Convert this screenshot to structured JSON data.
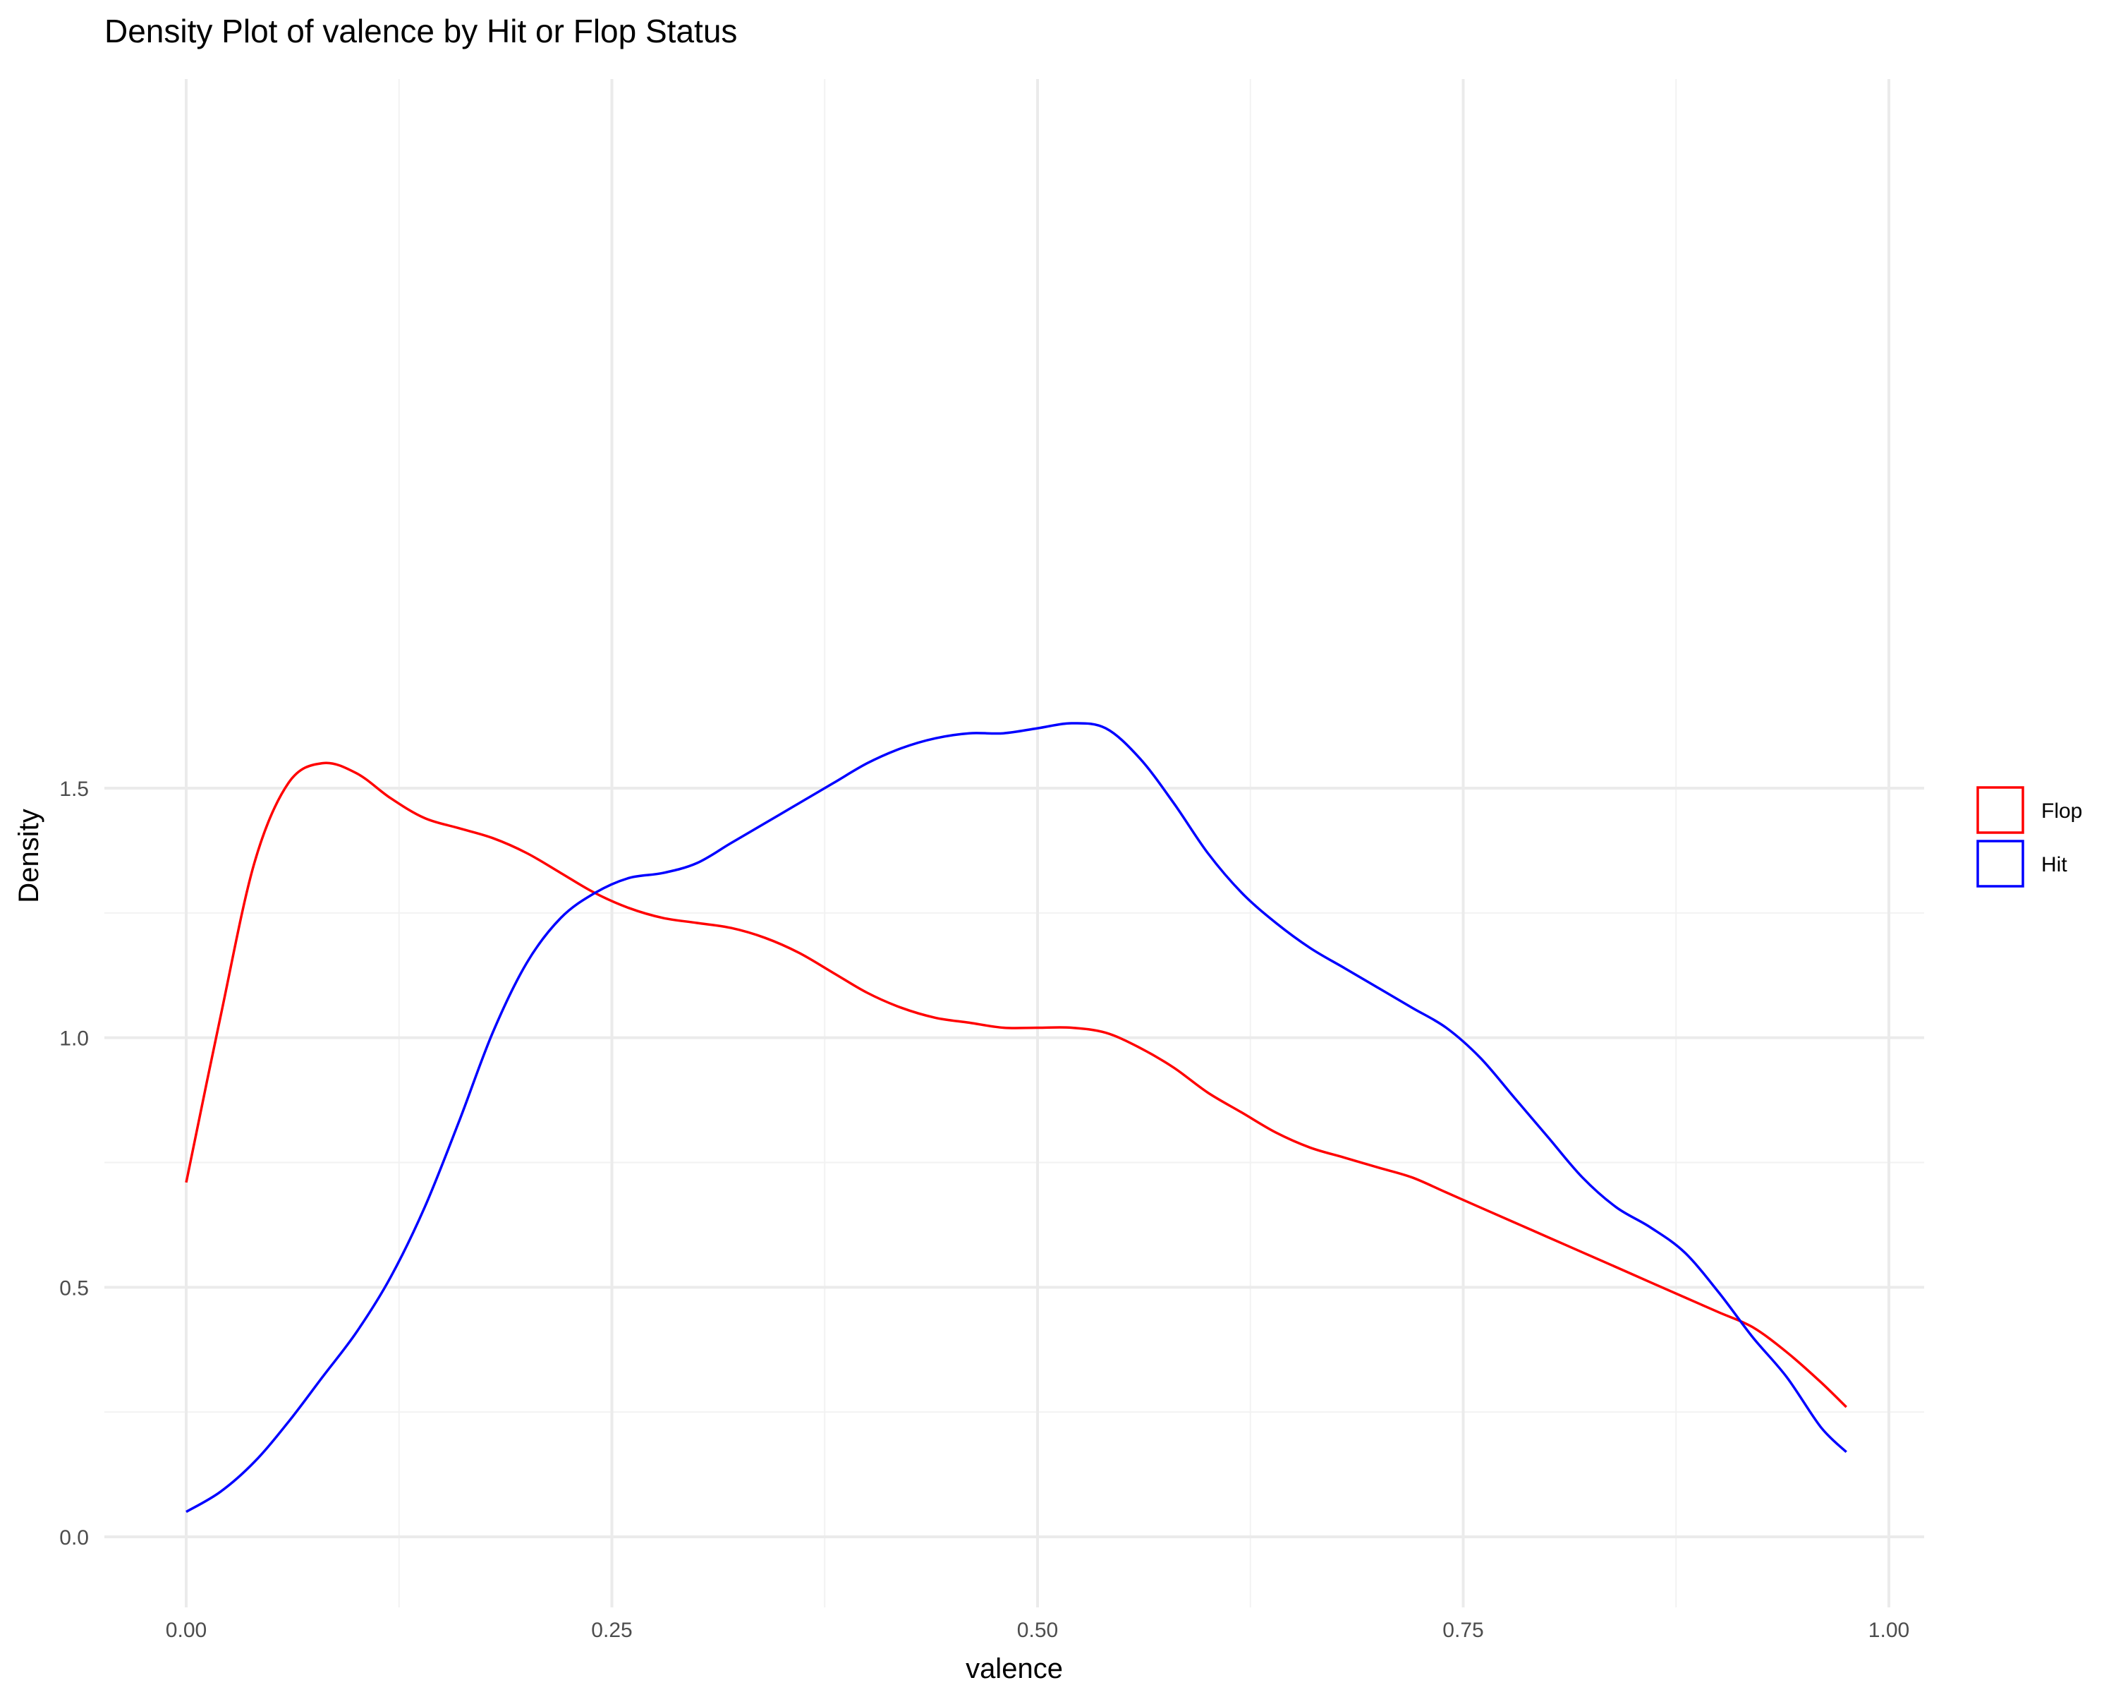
{
  "chart_data": {
    "type": "line",
    "title": "Density Plot of valence by Hit or Flop Status",
    "xlabel": "valence",
    "ylabel": "Density",
    "xlim": [
      0,
      1
    ],
    "ylim": [
      0,
      1.65
    ],
    "x_ticks": [
      0,
      0.25,
      0.5,
      0.75,
      1.0
    ],
    "x_tick_labels": [
      "0.00",
      "0.25",
      "0.50",
      "0.75",
      "1.00"
    ],
    "y_ticks": [
      0,
      0.5,
      1.0,
      1.5
    ],
    "y_tick_labels": [
      "0.0",
      "0.5",
      "1.0",
      "1.5"
    ],
    "grid": true,
    "legend_position": "right",
    "series": [
      {
        "name": "Flop",
        "color": "#ff0000",
        "x": [
          0.0,
          0.02,
          0.04,
          0.06,
          0.08,
          0.1,
          0.12,
          0.14,
          0.16,
          0.18,
          0.2,
          0.22,
          0.24,
          0.26,
          0.28,
          0.3,
          0.32,
          0.34,
          0.36,
          0.38,
          0.4,
          0.42,
          0.44,
          0.46,
          0.48,
          0.5,
          0.52,
          0.54,
          0.56,
          0.58,
          0.6,
          0.62,
          0.64,
          0.66,
          0.68,
          0.7,
          0.72,
          0.74,
          0.76,
          0.78,
          0.8,
          0.82,
          0.84,
          0.86,
          0.88,
          0.9,
          0.92,
          0.94,
          0.96,
          0.975
        ],
        "y": [
          0.71,
          1.04,
          1.35,
          1.51,
          1.55,
          1.53,
          1.48,
          1.44,
          1.42,
          1.4,
          1.37,
          1.33,
          1.29,
          1.26,
          1.24,
          1.23,
          1.22,
          1.2,
          1.17,
          1.13,
          1.09,
          1.06,
          1.04,
          1.03,
          1.02,
          1.02,
          1.02,
          1.01,
          0.98,
          0.94,
          0.89,
          0.85,
          0.81,
          0.78,
          0.76,
          0.74,
          0.72,
          0.69,
          0.66,
          0.63,
          0.6,
          0.57,
          0.54,
          0.51,
          0.48,
          0.45,
          0.42,
          0.37,
          0.31,
          0.26
        ]
      },
      {
        "name": "Hit",
        "color": "#0000ff",
        "x": [
          0.0,
          0.02,
          0.04,
          0.06,
          0.08,
          0.1,
          0.12,
          0.14,
          0.16,
          0.18,
          0.2,
          0.22,
          0.24,
          0.26,
          0.28,
          0.3,
          0.32,
          0.34,
          0.36,
          0.38,
          0.4,
          0.42,
          0.44,
          0.46,
          0.48,
          0.5,
          0.52,
          0.54,
          0.56,
          0.58,
          0.6,
          0.62,
          0.64,
          0.66,
          0.68,
          0.7,
          0.72,
          0.74,
          0.76,
          0.78,
          0.8,
          0.82,
          0.84,
          0.86,
          0.88,
          0.9,
          0.92,
          0.94,
          0.96,
          0.975
        ],
        "y": [
          0.05,
          0.09,
          0.15,
          0.23,
          0.32,
          0.41,
          0.52,
          0.66,
          0.83,
          1.01,
          1.15,
          1.24,
          1.29,
          1.32,
          1.33,
          1.35,
          1.39,
          1.43,
          1.47,
          1.51,
          1.55,
          1.58,
          1.6,
          1.61,
          1.61,
          1.62,
          1.63,
          1.62,
          1.56,
          1.47,
          1.37,
          1.29,
          1.23,
          1.18,
          1.14,
          1.1,
          1.06,
          1.02,
          0.96,
          0.88,
          0.8,
          0.72,
          0.66,
          0.62,
          0.57,
          0.49,
          0.4,
          0.32,
          0.22,
          0.17
        ]
      }
    ],
    "legend": {
      "entries": [
        "Flop",
        "Hit"
      ]
    }
  }
}
